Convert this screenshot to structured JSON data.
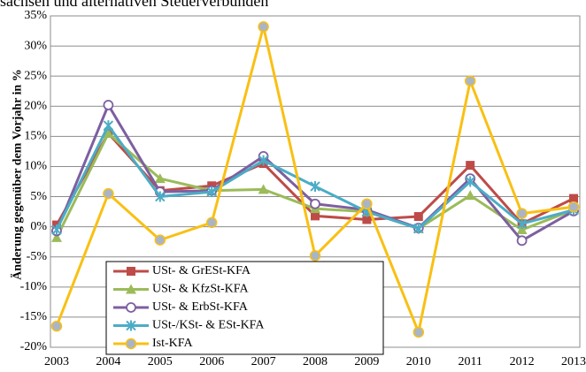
{
  "chart_data": {
    "type": "line",
    "title": "sachsen und alternativen Steuerverbünden",
    "y_label": "Änderung gegenüber dem Vorjahr in %",
    "categories": [
      "2003",
      "2004",
      "2005",
      "2006",
      "2007",
      "2008",
      "2009",
      "2010",
      "2011",
      "2012",
      "2013"
    ],
    "series": [
      {
        "name": "USt- & GrESt-KFA",
        "color": "#be4b48",
        "marker": "square",
        "values": [
          0.3,
          15.5,
          6,
          6.8,
          10.5,
          1.8,
          1.2,
          1.7,
          10.2,
          0.5,
          4.7
        ]
      },
      {
        "name": "USt- & KfzSt-KFA",
        "color": "#9bbb59",
        "marker": "triangle",
        "values": [
          -1.8,
          15.5,
          8,
          6,
          6.2,
          3,
          2.5,
          -0.3,
          5.2,
          -0.5,
          2.8
        ]
      },
      {
        "name": "USt- & ErbSt-KFA",
        "color": "#7d5fa0",
        "marker": "circle-open",
        "values": [
          -0.7,
          20.2,
          5.8,
          6,
          11.7,
          3.8,
          2.8,
          -0.2,
          8,
          -2.3,
          2.6
        ]
      },
      {
        "name": "USt-/KSt- & ESt-KFA",
        "color": "#4bacc6",
        "marker": "star",
        "values": [
          -0.5,
          16.8,
          5,
          5.8,
          11,
          6.7,
          2.5,
          -0.3,
          7.5,
          0.5,
          2.8
        ]
      },
      {
        "name": "Ist-KFA",
        "color": "#f9c013",
        "marker": "circle",
        "values": [
          -16.5,
          5.5,
          -2.2,
          0.7,
          33.2,
          -4.8,
          3.8,
          -17.5,
          24.2,
          2.2,
          3.3
        ]
      }
    ],
    "ylim": [
      -20,
      35
    ],
    "yticks": [
      {
        "value": -20,
        "label": "-20%"
      },
      {
        "value": -15,
        "label": "-15%"
      },
      {
        "value": -10,
        "label": "-10%"
      },
      {
        "value": -5,
        "label": "-5%"
      },
      {
        "value": 0,
        "label": "0%"
      },
      {
        "value": 5,
        "label": "5%"
      },
      {
        "value": 10,
        "label": "10%"
      },
      {
        "value": 15,
        "label": "15%"
      },
      {
        "value": 20,
        "label": "20%"
      },
      {
        "value": 25,
        "label": "25%"
      },
      {
        "value": 30,
        "label": "30%"
      },
      {
        "value": 35,
        "label": "35%"
      }
    ],
    "grid": true
  }
}
